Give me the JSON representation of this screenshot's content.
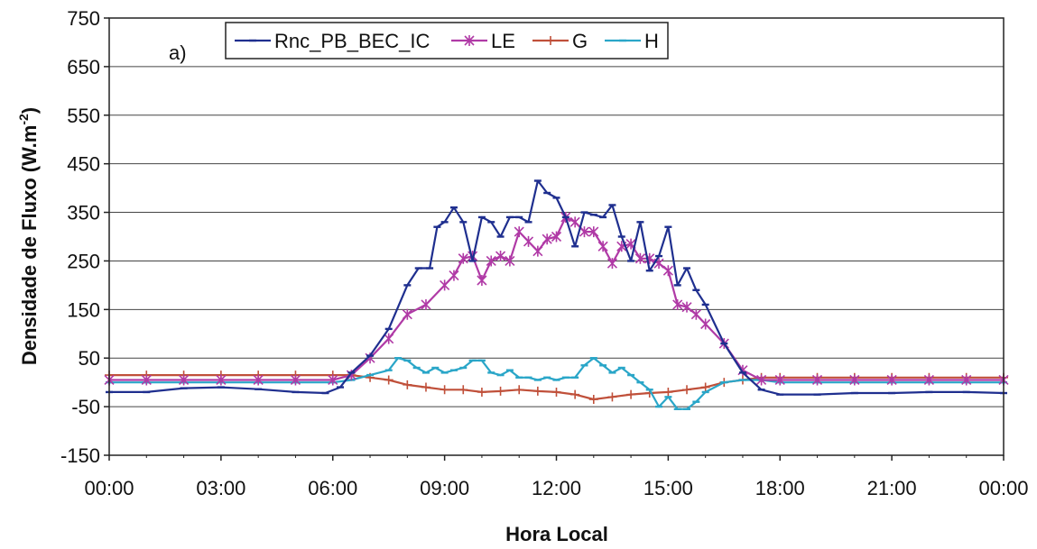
{
  "chart_data": {
    "type": "line",
    "panel_label": "a)",
    "xlabel": "Hora Local",
    "ylabel": "Densidade de Fluxo (W.m",
    "ylabel_sup": "-2",
    "ylabel_close": ")",
    "xlim": [
      0,
      24
    ],
    "ylim": [
      -150,
      750
    ],
    "yticks": [
      750,
      650,
      550,
      450,
      350,
      250,
      150,
      50,
      -50,
      -150
    ],
    "xticks": [
      0,
      3,
      6,
      9,
      12,
      15,
      18,
      21,
      24
    ],
    "xtick_labels": [
      "00:00",
      "03:00",
      "06:00",
      "09:00",
      "12:00",
      "15:00",
      "18:00",
      "21:00",
      "00:00"
    ],
    "grid": "horizontal",
    "legend_position": "top-left",
    "series": [
      {
        "name": "Rnc_PB_BEC_IC",
        "color": "#1f2f8f",
        "marker": "dash",
        "points": [
          [
            0,
            -20
          ],
          [
            1,
            -20
          ],
          [
            2,
            -12
          ],
          [
            3,
            -10
          ],
          [
            4,
            -14
          ],
          [
            5,
            -20
          ],
          [
            5.8,
            -22
          ],
          [
            6.2,
            -10
          ],
          [
            6.5,
            20
          ],
          [
            7,
            55
          ],
          [
            7.5,
            110
          ],
          [
            8,
            200
          ],
          [
            8.3,
            235
          ],
          [
            8.6,
            235
          ],
          [
            8.8,
            320
          ],
          [
            9,
            330
          ],
          [
            9.25,
            360
          ],
          [
            9.5,
            330
          ],
          [
            9.75,
            250
          ],
          [
            10,
            340
          ],
          [
            10.25,
            330
          ],
          [
            10.5,
            300
          ],
          [
            10.75,
            340
          ],
          [
            11,
            340
          ],
          [
            11.25,
            330
          ],
          [
            11.5,
            415
          ],
          [
            11.75,
            390
          ],
          [
            12,
            380
          ],
          [
            12.25,
            340
          ],
          [
            12.5,
            280
          ],
          [
            12.75,
            350
          ],
          [
            13,
            345
          ],
          [
            13.25,
            340
          ],
          [
            13.5,
            365
          ],
          [
            13.75,
            300
          ],
          [
            14,
            250
          ],
          [
            14.25,
            330
          ],
          [
            14.5,
            230
          ],
          [
            14.75,
            260
          ],
          [
            15,
            320
          ],
          [
            15.25,
            200
          ],
          [
            15.5,
            235
          ],
          [
            15.75,
            190
          ],
          [
            16,
            160
          ],
          [
            16.5,
            80
          ],
          [
            17,
            20
          ],
          [
            17.5,
            -15
          ],
          [
            18,
            -25
          ],
          [
            19,
            -25
          ],
          [
            20,
            -22
          ],
          [
            21,
            -22
          ],
          [
            22,
            -20
          ],
          [
            23,
            -20
          ],
          [
            24,
            -22
          ]
        ]
      },
      {
        "name": "LE",
        "color": "#b03aa6",
        "marker": "star",
        "points": [
          [
            0,
            5
          ],
          [
            1,
            5
          ],
          [
            2,
            5
          ],
          [
            3,
            5
          ],
          [
            4,
            5
          ],
          [
            5,
            5
          ],
          [
            6,
            5
          ],
          [
            6.5,
            15
          ],
          [
            7,
            50
          ],
          [
            7.5,
            90
          ],
          [
            8,
            140
          ],
          [
            8.5,
            160
          ],
          [
            9,
            200
          ],
          [
            9.25,
            220
          ],
          [
            9.5,
            255
          ],
          [
            9.75,
            260
          ],
          [
            10,
            210
          ],
          [
            10.25,
            250
          ],
          [
            10.5,
            260
          ],
          [
            10.75,
            250
          ],
          [
            11,
            310
          ],
          [
            11.25,
            290
          ],
          [
            11.5,
            270
          ],
          [
            11.75,
            295
          ],
          [
            12,
            300
          ],
          [
            12.25,
            340
          ],
          [
            12.5,
            330
          ],
          [
            12.75,
            310
          ],
          [
            13,
            310
          ],
          [
            13.25,
            280
          ],
          [
            13.5,
            245
          ],
          [
            13.75,
            280
          ],
          [
            14,
            285
          ],
          [
            14.25,
            255
          ],
          [
            14.5,
            255
          ],
          [
            14.75,
            245
          ],
          [
            15,
            230
          ],
          [
            15.25,
            160
          ],
          [
            15.5,
            155
          ],
          [
            15.75,
            140
          ],
          [
            16,
            120
          ],
          [
            16.5,
            80
          ],
          [
            17,
            25
          ],
          [
            17.5,
            5
          ],
          [
            18,
            5
          ],
          [
            19,
            5
          ],
          [
            20,
            5
          ],
          [
            21,
            5
          ],
          [
            22,
            5
          ],
          [
            23,
            5
          ],
          [
            24,
            5
          ]
        ]
      },
      {
        "name": "G",
        "color": "#c0503a",
        "marker": "plus",
        "points": [
          [
            0,
            15
          ],
          [
            1,
            15
          ],
          [
            2,
            15
          ],
          [
            3,
            15
          ],
          [
            4,
            15
          ],
          [
            5,
            15
          ],
          [
            6,
            15
          ],
          [
            6.5,
            15
          ],
          [
            7,
            10
          ],
          [
            7.5,
            5
          ],
          [
            8,
            -5
          ],
          [
            8.5,
            -10
          ],
          [
            9,
            -15
          ],
          [
            9.5,
            -15
          ],
          [
            10,
            -20
          ],
          [
            10.5,
            -18
          ],
          [
            11,
            -15
          ],
          [
            11.5,
            -18
          ],
          [
            12,
            -20
          ],
          [
            12.5,
            -25
          ],
          [
            13,
            -35
          ],
          [
            13.5,
            -30
          ],
          [
            14,
            -25
          ],
          [
            14.5,
            -22
          ],
          [
            15,
            -20
          ],
          [
            15.5,
            -15
          ],
          [
            16,
            -10
          ],
          [
            16.5,
            0
          ],
          [
            17,
            5
          ],
          [
            17.5,
            10
          ],
          [
            18,
            10
          ],
          [
            19,
            10
          ],
          [
            20,
            10
          ],
          [
            21,
            10
          ],
          [
            22,
            10
          ],
          [
            23,
            10
          ],
          [
            24,
            10
          ]
        ]
      },
      {
        "name": "H",
        "color": "#2aa6c8",
        "marker": "dash",
        "points": [
          [
            0,
            0
          ],
          [
            1,
            0
          ],
          [
            2,
            0
          ],
          [
            3,
            0
          ],
          [
            4,
            0
          ],
          [
            5,
            0
          ],
          [
            6,
            0
          ],
          [
            6.5,
            5
          ],
          [
            7,
            15
          ],
          [
            7.5,
            25
          ],
          [
            7.75,
            50
          ],
          [
            8,
            45
          ],
          [
            8.25,
            30
          ],
          [
            8.5,
            20
          ],
          [
            8.75,
            30
          ],
          [
            9,
            20
          ],
          [
            9.25,
            25
          ],
          [
            9.5,
            30
          ],
          [
            9.75,
            45
          ],
          [
            10,
            45
          ],
          [
            10.25,
            20
          ],
          [
            10.5,
            15
          ],
          [
            10.75,
            25
          ],
          [
            11,
            10
          ],
          [
            11.25,
            10
          ],
          [
            11.5,
            5
          ],
          [
            11.75,
            10
          ],
          [
            12,
            5
          ],
          [
            12.25,
            10
          ],
          [
            12.5,
            10
          ],
          [
            12.75,
            35
          ],
          [
            13,
            50
          ],
          [
            13.25,
            35
          ],
          [
            13.5,
            20
          ],
          [
            13.75,
            30
          ],
          [
            14,
            15
          ],
          [
            14.25,
            0
          ],
          [
            14.5,
            -15
          ],
          [
            14.75,
            -50
          ],
          [
            15,
            -30
          ],
          [
            15.25,
            -55
          ],
          [
            15.5,
            -55
          ],
          [
            15.75,
            -40
          ],
          [
            16,
            -20
          ],
          [
            16.5,
            0
          ],
          [
            17,
            5
          ],
          [
            17.5,
            5
          ],
          [
            18,
            0
          ],
          [
            19,
            0
          ],
          [
            20,
            0
          ],
          [
            21,
            0
          ],
          [
            22,
            0
          ],
          [
            23,
            0
          ],
          [
            24,
            0
          ]
        ]
      }
    ]
  }
}
